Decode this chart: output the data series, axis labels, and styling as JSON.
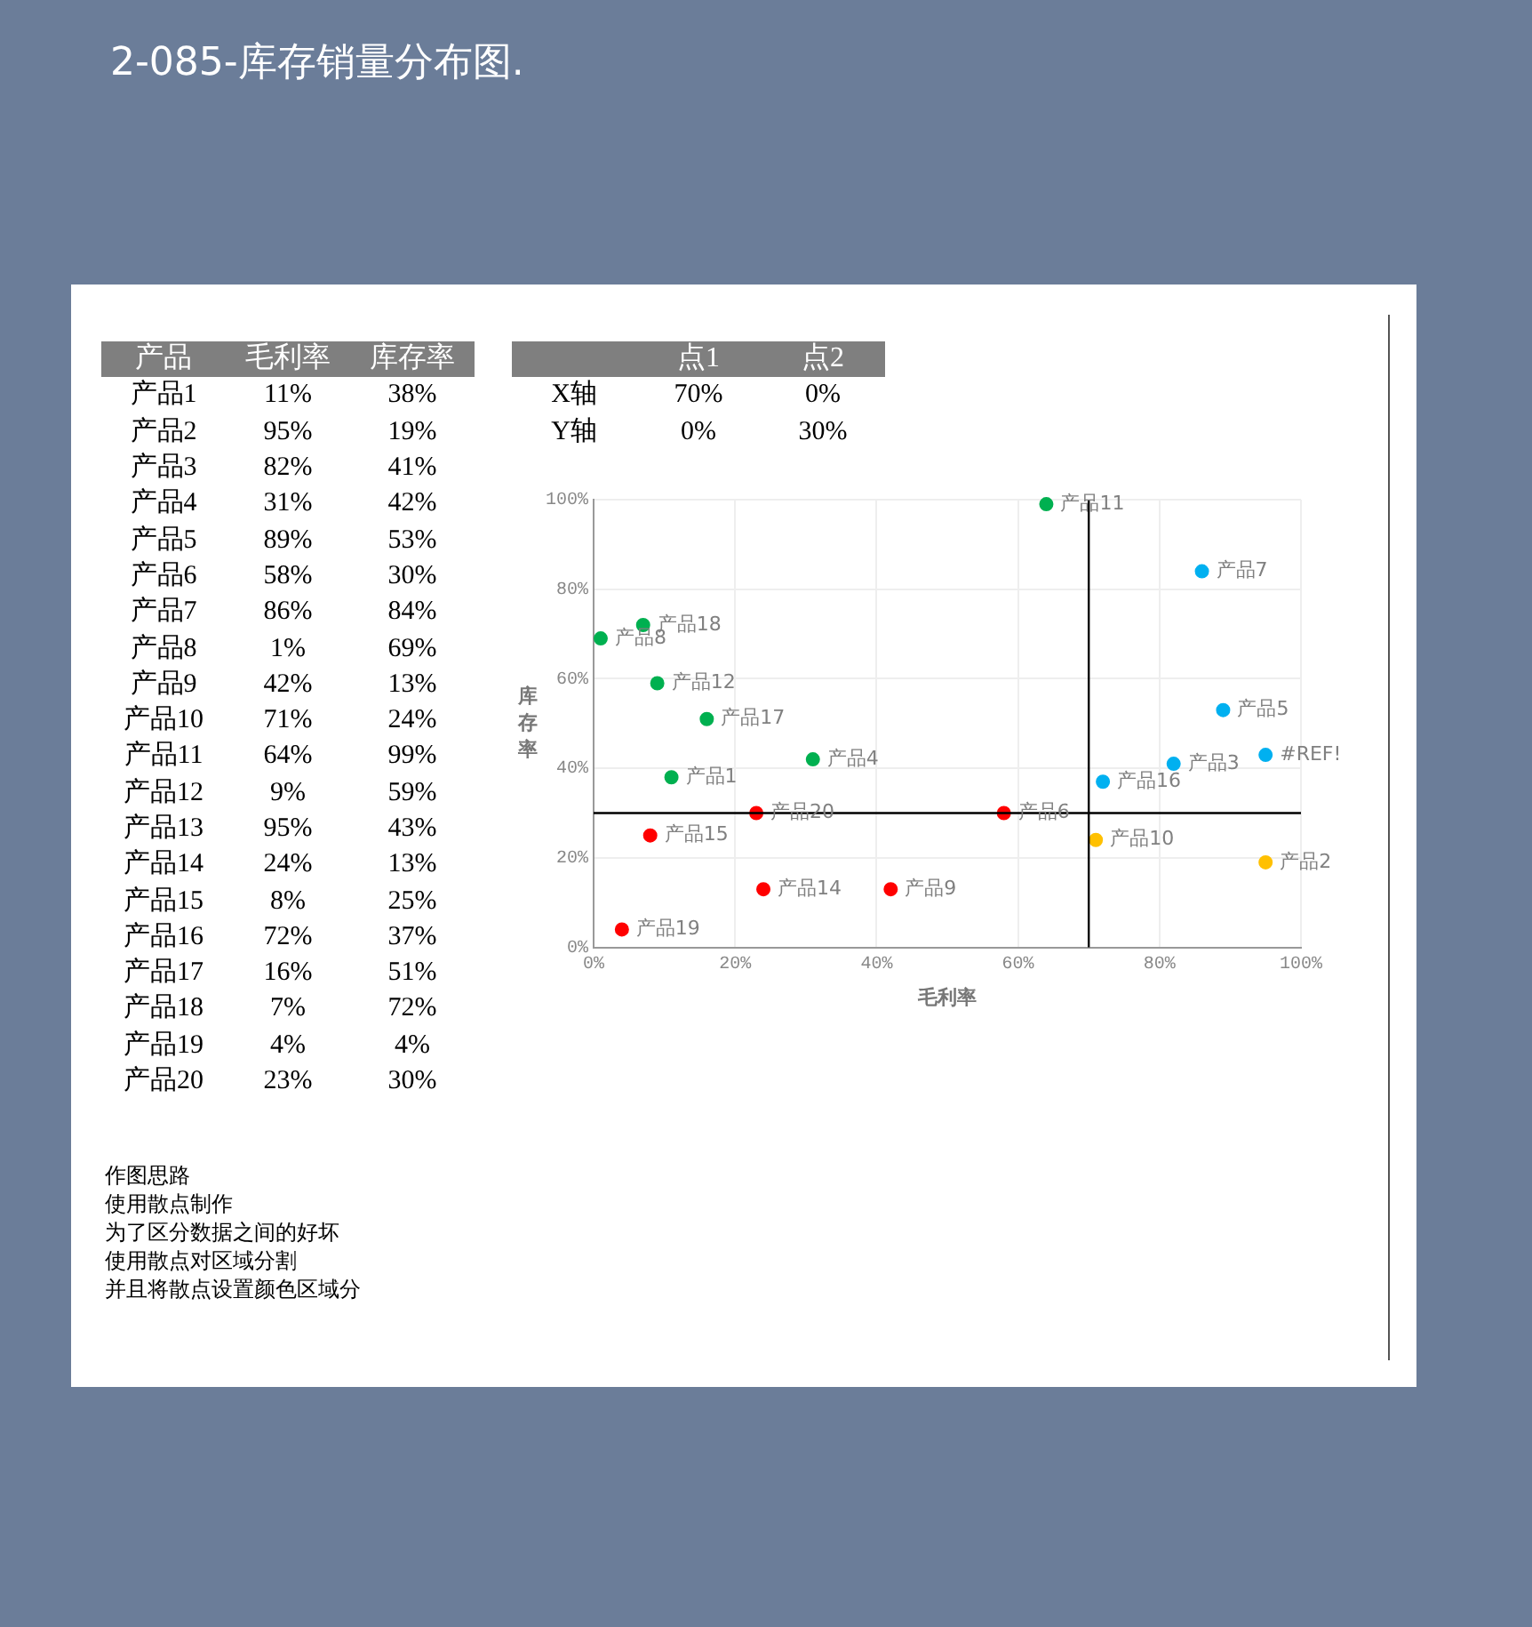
{
  "chart_data": {
    "type": "scatter",
    "title": "2-085-库存销量分布图.",
    "xlabel": "毛利率",
    "ylabel": "库存率",
    "xlim": [
      0,
      100
    ],
    "ylim": [
      0,
      100
    ],
    "xticks": [
      {
        "value": 0,
        "label": "0%"
      },
      {
        "value": 20,
        "label": "20%"
      },
      {
        "value": 40,
        "label": "40%"
      },
      {
        "value": 60,
        "label": "60%"
      },
      {
        "value": 80,
        "label": "80%"
      },
      {
        "value": 100,
        "label": "100%"
      }
    ],
    "yticks": [
      {
        "value": 0,
        "label": "0%"
      },
      {
        "value": 20,
        "label": "20%"
      },
      {
        "value": 40,
        "label": "40%"
      },
      {
        "value": 60,
        "label": "60%"
      },
      {
        "value": 80,
        "label": "80%"
      },
      {
        "value": 100,
        "label": "100%"
      }
    ],
    "grid": true,
    "legend": false,
    "marker": "circle",
    "ref_lines": [
      {
        "axis": "x",
        "value": 70,
        "color": "#000000"
      },
      {
        "axis": "y",
        "value": 30,
        "color": "#000000"
      }
    ],
    "series": [
      {
        "name": "产品1",
        "color": "#00b050",
        "x": [
          11
        ],
        "values": [
          38
        ]
      },
      {
        "name": "产品2",
        "color": "#ffc000",
        "x": [
          95
        ],
        "values": [
          19
        ]
      },
      {
        "name": "产品3",
        "color": "#00b0f0",
        "x": [
          82
        ],
        "values": [
          41
        ]
      },
      {
        "name": "产品4",
        "color": "#00b050",
        "x": [
          31
        ],
        "values": [
          42
        ]
      },
      {
        "name": "产品5",
        "color": "#00b0f0",
        "x": [
          89
        ],
        "values": [
          53
        ]
      },
      {
        "name": "产品6",
        "color": "#ff0000",
        "x": [
          58
        ],
        "values": [
          30
        ]
      },
      {
        "name": "产品7",
        "color": "#00b0f0",
        "x": [
          86
        ],
        "values": [
          84
        ]
      },
      {
        "name": "产品8",
        "color": "#00b050",
        "x": [
          1
        ],
        "values": [
          69
        ]
      },
      {
        "name": "产品9",
        "color": "#ff0000",
        "x": [
          42
        ],
        "values": [
          13
        ]
      },
      {
        "name": "产品10",
        "color": "#ffc000",
        "x": [
          71
        ],
        "values": [
          24
        ]
      },
      {
        "name": "产品11",
        "color": "#00b050",
        "x": [
          64
        ],
        "values": [
          99
        ]
      },
      {
        "name": "产品12",
        "color": "#00b050",
        "x": [
          9
        ],
        "values": [
          59
        ]
      },
      {
        "name": "#REF!",
        "color": "#00b0f0",
        "x": [
          95
        ],
        "values": [
          43
        ]
      },
      {
        "name": "产品14",
        "color": "#ff0000",
        "x": [
          24
        ],
        "values": [
          13
        ]
      },
      {
        "name": "产品15",
        "color": "#ff0000",
        "x": [
          8
        ],
        "values": [
          25
        ]
      },
      {
        "name": "产品16",
        "color": "#00b0f0",
        "x": [
          72
        ],
        "values": [
          37
        ]
      },
      {
        "name": "产品17",
        "color": "#00b050",
        "x": [
          16
        ],
        "values": [
          51
        ]
      },
      {
        "name": "产品18",
        "color": "#00b050",
        "x": [
          7
        ],
        "values": [
          72
        ]
      },
      {
        "name": "产品19",
        "color": "#ff0000",
        "x": [
          4
        ],
        "values": [
          4
        ]
      },
      {
        "name": "产品20",
        "color": "#ff0000",
        "x": [
          23
        ],
        "values": [
          30
        ]
      }
    ],
    "annotations": [
      "产品\t毛利率\t库存率",
      "产品1\t11%\t38%",
      "产品2\t95%\t19%",
      "产品3\t82%\t41%",
      "产品4\t31%\t42%",
      "产品5\t89%\t53%",
      "产品6\t58%\t30%",
      "产品7\t86%\t84%",
      "产品8\t1%\t69%",
      "产品9\t42%\t13%",
      "产品10\t71%\t24%",
      "产品11\t64%\t99%",
      "产品12\t9%\t59%",
      "产品13\t95%\t43%",
      "产品14\t24%\t13%",
      "产品15\t8%\t25%",
      "产品16\t72%\t37%",
      "产品17\t16%\t51%",
      "产品18\t7%\t72%",
      "产品19\t4%\t4%",
      "产品20\t23%\t30%",
      "\t点1\t点2",
      "X轴\t70%\t0%",
      "Y轴\t0%\t30%",
      "作图思路",
      "使用散点制作",
      "为了区分数据之间的好坏",
      "使用散点对区域分割",
      "并且将散点设置颜色区域分"
    ]
  }
}
